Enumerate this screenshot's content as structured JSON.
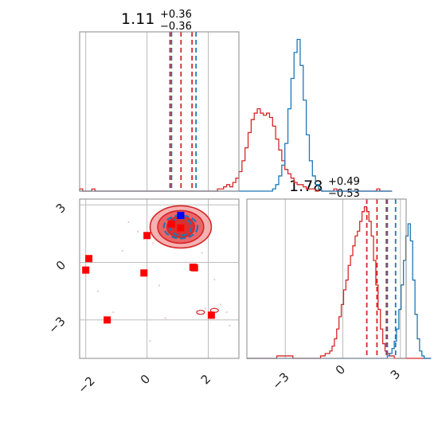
{
  "chart_data": {
    "type": "corner",
    "parameters": [
      {
        "median": "1.11",
        "plus": "+0.36",
        "minus": "−0.36",
        "ticks": [
          "−2",
          "0",
          "2"
        ],
        "range": [
          -2.2,
          3.0
        ]
      },
      {
        "median": "1.78",
        "plus": "+0.49",
        "minus": "−0.53",
        "ticks": [
          "−3",
          "0",
          "3"
        ],
        "range": [
          -5.0,
          3.3
        ]
      }
    ],
    "colors": {
      "red": "#d62728",
      "blue": "#1f77b4",
      "red_fill": "#f4a3a3",
      "blue_marker": "#0000ff",
      "grid": "#bbbbbb"
    },
    "hist_x": {
      "edges_start": -2.2,
      "bin_width": 0.1,
      "blue": [
        0,
        0,
        0,
        0,
        0,
        0,
        0,
        0,
        0,
        0,
        0,
        0,
        0,
        0,
        0,
        0,
        0,
        0,
        0,
        0,
        0,
        0,
        0,
        0,
        0,
        0,
        0,
        0,
        0,
        0,
        0,
        0,
        0,
        0,
        0,
        0,
        0,
        0,
        0,
        0,
        0,
        0,
        0,
        0,
        0,
        0,
        0,
        0,
        0,
        0,
        0,
        0,
        0,
        0,
        0,
        0,
        0,
        0,
        0,
        0,
        0,
        0,
        0,
        1,
        3,
        7,
        12,
        22,
        38,
        52,
        64,
        70,
        58,
        42,
        26,
        14,
        7,
        3,
        1,
        0,
        0,
        0,
        0,
        0,
        0,
        0,
        0,
        0,
        0,
        0,
        0,
        0,
        0,
        0,
        0,
        0,
        0,
        0,
        0,
        0,
        0,
        0
      ],
      "red": [
        1,
        0,
        0,
        0,
        1,
        0,
        0,
        0,
        0,
        0,
        0,
        0,
        0,
        0,
        0,
        0,
        0,
        0,
        0,
        0,
        0,
        0,
        0,
        0,
        0,
        0,
        0,
        0,
        0,
        0,
        0,
        0,
        0,
        0,
        0,
        0,
        0,
        0,
        0,
        0,
        0,
        0,
        0,
        0,
        0,
        1,
        1,
        2,
        3,
        2,
        4,
        6,
        9,
        14,
        20,
        27,
        33,
        36,
        38,
        36,
        35,
        36,
        34,
        30,
        24,
        19,
        14,
        10,
        8,
        6,
        4,
        3,
        3,
        2,
        1,
        1,
        1,
        0,
        1,
        0,
        0,
        0,
        0,
        1,
        0,
        0,
        0,
        0,
        0,
        0,
        0,
        0,
        0,
        0,
        0,
        0,
        0,
        1,
        0,
        0,
        0,
        0
      ],
      "red_quantiles": [
        0.75,
        1.11,
        1.47
      ],
      "blue_quantiles": [
        0.8,
        1.6
      ]
    },
    "hist_y": {
      "edges_start": -5.0,
      "bin_width": 0.12,
      "blue": [
        0,
        0,
        0,
        0,
        0,
        0,
        0,
        0,
        0,
        0,
        0,
        0,
        0,
        0,
        0,
        0,
        0,
        0,
        0,
        0,
        0,
        0,
        0,
        0,
        0,
        0,
        0,
        0,
        0,
        0,
        0,
        0,
        0,
        0,
        0,
        0,
        0,
        0,
        0,
        0,
        0,
        0,
        0,
        0,
        0,
        0,
        0,
        0,
        0,
        0,
        0,
        0,
        0,
        0,
        0,
        0,
        0,
        0,
        0,
        0,
        0,
        1,
        2,
        4,
        7,
        12,
        20,
        30,
        40,
        50,
        55,
        48,
        32,
        18,
        8,
        3,
        1,
        0,
        0,
        0
      ],
      "red": [
        0,
        0,
        0,
        0,
        0,
        0,
        0,
        0,
        0,
        0,
        0,
        0,
        0,
        1,
        1,
        1,
        1,
        1,
        1,
        1,
        0,
        0,
        0,
        0,
        0,
        0,
        0,
        0,
        0,
        0,
        0,
        0,
        1,
        1,
        2,
        2,
        3,
        5,
        8,
        12,
        17,
        22,
        28,
        32,
        38,
        42,
        46,
        50,
        52,
        56,
        60,
        62,
        60,
        56,
        50,
        40,
        30,
        20,
        12,
        6,
        3,
        2,
        1,
        1,
        0,
        0,
        0,
        0,
        0,
        0,
        0,
        0,
        0,
        0,
        0,
        0,
        0,
        0,
        0,
        0
      ],
      "red_quantiles": [
        1.25,
        1.78,
        2.27
      ],
      "blue_quantiles": [
        2.32,
        2.75
      ]
    },
    "scatter_red_squares": [
      [
        -1.9,
        0.2
      ],
      [
        -2.0,
        -0.4
      ],
      [
        -1.3,
        -3.0
      ],
      [
        -0.1,
        -0.55
      ],
      [
        0.0,
        1.4
      ],
      [
        0.8,
        2.0
      ],
      [
        1.1,
        1.8
      ],
      [
        1.5,
        -0.25
      ],
      [
        1.55,
        -0.28
      ],
      [
        2.1,
        -2.75
      ]
    ],
    "scatter_blue_squares": [
      [
        1.1,
        2.45
      ]
    ],
    "faint_points": [
      [
        -0.6,
        2.1
      ],
      [
        -0.3,
        1.6
      ],
      [
        0.2,
        1.0
      ],
      [
        -1.1,
        -2.6
      ],
      [
        2.4,
        -2.2
      ],
      [
        2.6,
        -2.6
      ],
      [
        1.9,
        -2.4
      ],
      [
        0.4,
        -1.2
      ],
      [
        -0.8,
        0.6
      ],
      [
        2.2,
        -0.9
      ],
      [
        1.8,
        0.5
      ],
      [
        0.6,
        -2.9
      ],
      [
        -1.6,
        -1.5
      ],
      [
        2.7,
        -3.3
      ],
      [
        0.1,
        -4.1
      ]
    ],
    "contour_center": [
      1.1,
      1.85
    ],
    "contour_red_radii": [
      [
        0.45,
        0.55
      ],
      [
        0.75,
        0.85
      ],
      [
        1.0,
        1.1
      ]
    ],
    "contour_blue_radii": [
      [
        0.35,
        0.45
      ],
      [
        0.55,
        0.6
      ]
    ],
    "small_contours": [
      [
        1.75,
        -2.6
      ],
      [
        2.2,
        -2.5
      ]
    ]
  }
}
